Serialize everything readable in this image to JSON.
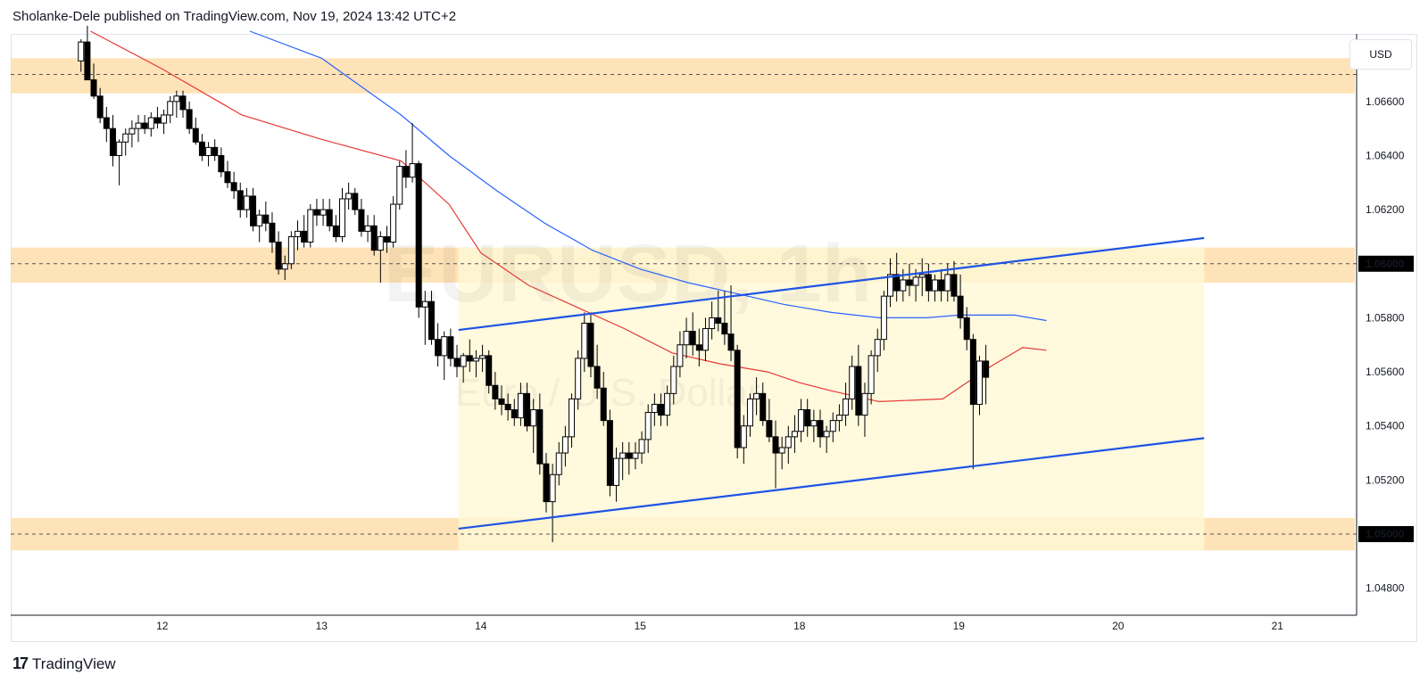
{
  "header": {
    "publisher_line": "Sholanke-Dele published on TradingView.com, Nov 19, 2024 13:42 UTC+2"
  },
  "footer": {
    "brand": "TradingView"
  },
  "currency": "USD",
  "watermark": {
    "symbol": "EURUSD, 1h",
    "description": "Euro / U.S. Dollar"
  },
  "colors": {
    "zone": "#ffd9a0",
    "channel_fill": "#fff7d6",
    "trend": "#1e53e5",
    "ma_fast": "#e53935",
    "ma_slow": "#2962ff",
    "candle_up": "#ffffff",
    "candle_down": "#000000",
    "wick": "#000000",
    "highlight": "#000000"
  },
  "chart_data": {
    "type": "candlestick",
    "symbol": "EURUSD",
    "timeframe": "1h",
    "ylim": [
      1.047,
      1.0685
    ],
    "y_ticks": [
      "1.06600",
      "1.06400",
      "1.06200",
      "1.05800",
      "1.05600",
      "1.05400",
      "1.05200",
      "1.04800"
    ],
    "highlighted_levels": [
      "1.06000",
      "1.05000"
    ],
    "x_ticks": [
      {
        "label": "12",
        "t": 12
      },
      {
        "label": "13",
        "t": 13
      },
      {
        "label": "14",
        "t": 14
      },
      {
        "label": "15",
        "t": 15
      },
      {
        "label": "18",
        "t": 16
      },
      {
        "label": "19",
        "t": 17
      },
      {
        "label": "20",
        "t": 18
      },
      {
        "label": "21",
        "t": 19
      }
    ],
    "xlim": [
      11.06,
      19.45
    ],
    "zones": [
      {
        "center": 1.067,
        "low": 1.0663,
        "high": 1.0676
      },
      {
        "center": 1.06,
        "low": 1.0593,
        "high": 1.0606
      },
      {
        "center": 1.05,
        "low": 1.0494,
        "high": 1.0506
      }
    ],
    "channel": {
      "upper": [
        [
          13.86,
          1.05755
        ],
        [
          18.54,
          1.06095
        ]
      ],
      "lower": [
        [
          13.86,
          1.0502
        ],
        [
          18.54,
          1.05355
        ]
      ],
      "box_t": [
        13.86,
        18.54
      ]
    },
    "ma_fast": [
      [
        11.55,
        1.0686
      ],
      [
        12.0,
        1.0672
      ],
      [
        12.5,
        1.0655
      ],
      [
        13.0,
        1.0646
      ],
      [
        13.5,
        1.0638
      ],
      [
        13.8,
        1.0622
      ],
      [
        14.0,
        1.0604
      ],
      [
        14.3,
        1.0592
      ],
      [
        14.6,
        1.0584
      ],
      [
        14.9,
        1.0576
      ],
      [
        15.2,
        1.0567
      ],
      [
        15.5,
        1.0563
      ],
      [
        15.8,
        1.056
      ],
      [
        16.0,
        1.0556
      ],
      [
        16.2,
        1.0553
      ],
      [
        16.5,
        1.0549
      ],
      [
        16.9,
        1.055
      ],
      [
        17.2,
        1.0562
      ],
      [
        17.4,
        1.0569
      ],
      [
        17.55,
        1.0568
      ]
    ],
    "ma_slow": [
      [
        12.55,
        1.0686
      ],
      [
        13.0,
        1.0676
      ],
      [
        13.5,
        1.0655
      ],
      [
        13.8,
        1.064
      ],
      [
        14.1,
        1.0627
      ],
      [
        14.4,
        1.0615
      ],
      [
        14.7,
        1.0605
      ],
      [
        15.0,
        1.0598
      ],
      [
        15.3,
        1.0593
      ],
      [
        15.6,
        1.0589
      ],
      [
        15.9,
        1.0585
      ],
      [
        16.2,
        1.0582
      ],
      [
        16.5,
        1.058
      ],
      [
        16.8,
        1.058
      ],
      [
        17.0,
        1.0581
      ],
      [
        17.2,
        1.0581
      ],
      [
        17.35,
        1.0581
      ],
      [
        17.55,
        1.0579
      ]
    ],
    "candles": [
      [
        11.49,
        1.0675,
        1.0683,
        1.0671,
        1.0682
      ],
      [
        11.53,
        1.0682,
        1.0688,
        1.0668,
        1.0668
      ],
      [
        11.57,
        1.0668,
        1.0674,
        1.0661,
        1.0662
      ],
      [
        11.61,
        1.0662,
        1.0665,
        1.0652,
        1.0654
      ],
      [
        11.65,
        1.0654,
        1.0658,
        1.0645,
        1.065
      ],
      [
        11.69,
        1.065,
        1.0655,
        1.0636,
        1.064
      ],
      [
        11.73,
        1.064,
        1.0646,
        1.0629,
        1.0645
      ],
      [
        11.77,
        1.0645,
        1.065,
        1.064,
        1.0648
      ],
      [
        11.81,
        1.0648,
        1.0653,
        1.0643,
        1.065
      ],
      [
        11.85,
        1.065,
        1.0655,
        1.0645,
        1.0652
      ],
      [
        11.89,
        1.0652,
        1.0655,
        1.0648,
        1.065
      ],
      [
        11.93,
        1.065,
        1.0656,
        1.0647,
        1.0654
      ],
      [
        11.97,
        1.0654,
        1.0658,
        1.065,
        1.0652
      ],
      [
        12.01,
        1.0652,
        1.0657,
        1.0648,
        1.0655
      ],
      [
        12.05,
        1.0655,
        1.0662,
        1.0652,
        1.066
      ],
      [
        12.09,
        1.066,
        1.0664,
        1.0654,
        1.0662
      ],
      [
        12.13,
        1.0662,
        1.0664,
        1.0654,
        1.0657
      ],
      [
        12.17,
        1.0657,
        1.066,
        1.0648,
        1.065
      ],
      [
        12.21,
        1.065,
        1.0654,
        1.0644,
        1.0645
      ],
      [
        12.25,
        1.0645,
        1.0648,
        1.0638,
        1.064
      ],
      [
        12.29,
        1.064,
        1.0645,
        1.0636,
        1.0643
      ],
      [
        12.33,
        1.0643,
        1.0646,
        1.0638,
        1.064
      ],
      [
        12.37,
        1.064,
        1.0643,
        1.0632,
        1.0634
      ],
      [
        12.41,
        1.0634,
        1.0638,
        1.0628,
        1.063
      ],
      [
        12.45,
        1.063,
        1.0634,
        1.0624,
        1.0627
      ],
      [
        12.49,
        1.0627,
        1.063,
        1.0617,
        1.062
      ],
      [
        12.53,
        1.062,
        1.0628,
        1.0617,
        1.0625
      ],
      [
        12.57,
        1.0625,
        1.0628,
        1.0612,
        1.0614
      ],
      [
        12.61,
        1.0614,
        1.062,
        1.0608,
        1.0618
      ],
      [
        12.65,
        1.0618,
        1.0623,
        1.0612,
        1.0615
      ],
      [
        12.69,
        1.0615,
        1.0619,
        1.0604,
        1.0608
      ],
      [
        12.73,
        1.0608,
        1.0612,
        1.0596,
        1.0598
      ],
      [
        12.77,
        1.0598,
        1.0603,
        1.0594,
        1.06
      ],
      [
        12.81,
        1.06,
        1.0612,
        1.0598,
        1.061
      ],
      [
        12.85,
        1.061,
        1.0616,
        1.0605,
        1.0612
      ],
      [
        12.89,
        1.0612,
        1.0618,
        1.0606,
        1.0608
      ],
      [
        12.93,
        1.0608,
        1.0622,
        1.0606,
        1.062
      ],
      [
        12.97,
        1.062,
        1.0624,
        1.0614,
        1.0618
      ],
      [
        13.01,
        1.0618,
        1.0624,
        1.0614,
        1.062
      ],
      [
        13.05,
        1.062,
        1.0624,
        1.0612,
        1.0614
      ],
      [
        13.09,
        1.0614,
        1.0618,
        1.0608,
        1.061
      ],
      [
        13.13,
        1.061,
        1.0628,
        1.0608,
        1.0624
      ],
      [
        13.17,
        1.0624,
        1.063,
        1.062,
        1.0626
      ],
      [
        13.21,
        1.0626,
        1.0628,
        1.0618,
        1.062
      ],
      [
        13.25,
        1.062,
        1.0624,
        1.061,
        1.0612
      ],
      [
        13.29,
        1.0612,
        1.0618,
        1.0608,
        1.0614
      ],
      [
        13.33,
        1.0614,
        1.0618,
        1.0603,
        1.0605
      ],
      [
        13.37,
        1.0605,
        1.0612,
        1.0593,
        1.061
      ],
      [
        13.41,
        1.061,
        1.0614,
        1.0604,
        1.0608
      ],
      [
        13.45,
        1.0608,
        1.0625,
        1.0606,
        1.0622
      ],
      [
        13.49,
        1.0622,
        1.0638,
        1.062,
        1.0636
      ],
      [
        13.53,
        1.0636,
        1.0642,
        1.0628,
        1.0632
      ],
      [
        13.57,
        1.0632,
        1.0652,
        1.063,
        1.0637
      ],
      [
        13.61,
        1.0637,
        1.0638,
        1.058,
        1.0584
      ],
      [
        13.65,
        1.0584,
        1.059,
        1.057,
        1.0586
      ],
      [
        13.69,
        1.0586,
        1.059,
        1.057,
        1.0572
      ],
      [
        13.73,
        1.0572,
        1.0578,
        1.0562,
        1.0566
      ],
      [
        13.77,
        1.0566,
        1.0575,
        1.0557,
        1.0573
      ],
      [
        13.81,
        1.0573,
        1.0576,
        1.0562,
        1.0565
      ],
      [
        13.85,
        1.0565,
        1.057,
        1.0558,
        1.0562
      ],
      [
        13.89,
        1.0562,
        1.0567,
        1.0556,
        1.0566
      ],
      [
        13.93,
        1.0566,
        1.0572,
        1.056,
        1.0564
      ],
      [
        13.97,
        1.0564,
        1.0568,
        1.0558,
        1.0565
      ],
      [
        14.01,
        1.0565,
        1.057,
        1.056,
        1.0566
      ],
      [
        14.05,
        1.0566,
        1.0568,
        1.0552,
        1.0555
      ],
      [
        14.09,
        1.0555,
        1.056,
        1.0546,
        1.055
      ],
      [
        14.13,
        1.055,
        1.0555,
        1.0544,
        1.0548
      ],
      [
        14.17,
        1.0548,
        1.0552,
        1.0542,
        1.0546
      ],
      [
        14.21,
        1.0546,
        1.055,
        1.054,
        1.0543
      ],
      [
        14.25,
        1.0543,
        1.0556,
        1.054,
        1.0552
      ],
      [
        14.29,
        1.0552,
        1.0556,
        1.0538,
        1.054
      ],
      [
        14.33,
        1.054,
        1.055,
        1.053,
        1.0546
      ],
      [
        14.37,
        1.0546,
        1.0552,
        1.0522,
        1.0526
      ],
      [
        14.41,
        1.0526,
        1.053,
        1.0508,
        1.0512
      ],
      [
        14.45,
        1.0512,
        1.0526,
        1.0497,
        1.0522
      ],
      [
        14.49,
        1.0522,
        1.0534,
        1.0518,
        1.053
      ],
      [
        14.53,
        1.053,
        1.054,
        1.0525,
        1.0536
      ],
      [
        14.57,
        1.0536,
        1.0552,
        1.0532,
        1.055
      ],
      [
        14.61,
        1.055,
        1.0568,
        1.0546,
        1.0565
      ],
      [
        14.65,
        1.0565,
        1.0582,
        1.056,
        1.0578
      ],
      [
        14.69,
        1.0578,
        1.0582,
        1.0558,
        1.0562
      ],
      [
        14.73,
        1.0562,
        1.057,
        1.055,
        1.0554
      ],
      [
        14.77,
        1.0554,
        1.056,
        1.054,
        1.0542
      ],
      [
        14.81,
        1.0542,
        1.0546,
        1.0514,
        1.0518
      ],
      [
        14.85,
        1.0518,
        1.0532,
        1.0512,
        1.0528
      ],
      [
        14.89,
        1.0528,
        1.0534,
        1.052,
        1.053
      ],
      [
        14.93,
        1.053,
        1.0534,
        1.0522,
        1.0528
      ],
      [
        14.97,
        1.0528,
        1.0534,
        1.0524,
        1.053
      ],
      [
        15.01,
        1.053,
        1.0538,
        1.0526,
        1.0535
      ],
      [
        15.05,
        1.0535,
        1.0548,
        1.053,
        1.0545
      ],
      [
        15.09,
        1.0545,
        1.0552,
        1.054,
        1.0548
      ],
      [
        15.13,
        1.0548,
        1.0552,
        1.054,
        1.0544
      ],
      [
        15.17,
        1.0544,
        1.0555,
        1.054,
        1.0552
      ],
      [
        15.21,
        1.0552,
        1.0566,
        1.0548,
        1.0562
      ],
      [
        15.25,
        1.0562,
        1.0575,
        1.0558,
        1.057
      ],
      [
        15.29,
        1.057,
        1.058,
        1.0565,
        1.0575
      ],
      [
        15.33,
        1.0575,
        1.0582,
        1.0566,
        1.057
      ],
      [
        15.37,
        1.057,
        1.0576,
        1.0562,
        1.0568
      ],
      [
        15.41,
        1.0568,
        1.058,
        1.0564,
        1.0576
      ],
      [
        15.45,
        1.0576,
        1.0586,
        1.0572,
        1.058
      ],
      [
        15.49,
        1.058,
        1.059,
        1.0575,
        1.0578
      ],
      [
        15.53,
        1.0578,
        1.059,
        1.057,
        1.0574
      ],
      [
        15.57,
        1.0574,
        1.0592,
        1.0564,
        1.0568
      ],
      [
        15.61,
        1.0568,
        1.057,
        1.0528,
        1.0532
      ],
      [
        15.65,
        1.0532,
        1.0544,
        1.0526,
        1.054
      ],
      [
        15.69,
        1.054,
        1.0552,
        1.0536,
        1.055
      ],
      [
        15.73,
        1.055,
        1.0558,
        1.0544,
        1.0552
      ],
      [
        15.77,
        1.0552,
        1.0556,
        1.054,
        1.0542
      ],
      [
        15.81,
        1.0542,
        1.055,
        1.0534,
        1.0536
      ],
      [
        15.85,
        1.0536,
        1.0542,
        1.0517,
        1.053
      ],
      [
        15.89,
        1.053,
        1.0536,
        1.0524,
        1.0532
      ],
      [
        15.93,
        1.0532,
        1.054,
        1.0526,
        1.0536
      ],
      [
        15.97,
        1.0536,
        1.0544,
        1.053,
        1.0538
      ],
      [
        16.01,
        1.0538,
        1.055,
        1.0534,
        1.0546
      ],
      [
        16.05,
        1.0546,
        1.055,
        1.0536,
        1.054
      ],
      [
        16.09,
        1.054,
        1.0546,
        1.0534,
        1.0542
      ],
      [
        16.13,
        1.0542,
        1.0546,
        1.0532,
        1.0536
      ],
      [
        16.17,
        1.0536,
        1.054,
        1.053,
        1.0538
      ],
      [
        16.21,
        1.0538,
        1.0545,
        1.0534,
        1.0542
      ],
      [
        16.25,
        1.0542,
        1.0548,
        1.0538,
        1.0544
      ],
      [
        16.29,
        1.0544,
        1.0556,
        1.054,
        1.055
      ],
      [
        16.33,
        1.055,
        1.0566,
        1.0546,
        1.0562
      ],
      [
        16.37,
        1.0562,
        1.057,
        1.054,
        1.0544
      ],
      [
        16.41,
        1.0544,
        1.0556,
        1.0536,
        1.0552
      ],
      [
        16.45,
        1.0552,
        1.0568,
        1.0548,
        1.0566
      ],
      [
        16.49,
        1.0566,
        1.0576,
        1.056,
        1.0572
      ],
      [
        16.53,
        1.0572,
        1.059,
        1.0568,
        1.0588
      ],
      [
        16.57,
        1.0588,
        1.0602,
        1.0584,
        1.0596
      ],
      [
        16.61,
        1.0596,
        1.0604,
        1.0586,
        1.059
      ],
      [
        16.65,
        1.059,
        1.0598,
        1.0586,
        1.0594
      ],
      [
        16.69,
        1.0594,
        1.06,
        1.0588,
        1.0592
      ],
      [
        16.73,
        1.0592,
        1.0598,
        1.0586,
        1.0595
      ],
      [
        16.77,
        1.0595,
        1.0602,
        1.0588,
        1.0596
      ],
      [
        16.81,
        1.0596,
        1.06,
        1.0586,
        1.059
      ],
      [
        16.85,
        1.059,
        1.0596,
        1.0586,
        1.0594
      ],
      [
        16.89,
        1.0594,
        1.0598,
        1.0586,
        1.059
      ],
      [
        16.93,
        1.059,
        1.06,
        1.0586,
        1.0596
      ],
      [
        16.97,
        1.0596,
        1.0601,
        1.0586,
        1.0588
      ],
      [
        17.01,
        1.0588,
        1.0596,
        1.0576,
        1.058
      ],
      [
        17.05,
        1.058,
        1.0584,
        1.0568,
        1.0572
      ],
      [
        17.09,
        1.0572,
        1.0574,
        1.0524,
        1.0548
      ],
      [
        17.13,
        1.0548,
        1.0566,
        1.0544,
        1.0564
      ],
      [
        17.17,
        1.0564,
        1.057,
        1.0548,
        1.0558
      ]
    ]
  }
}
